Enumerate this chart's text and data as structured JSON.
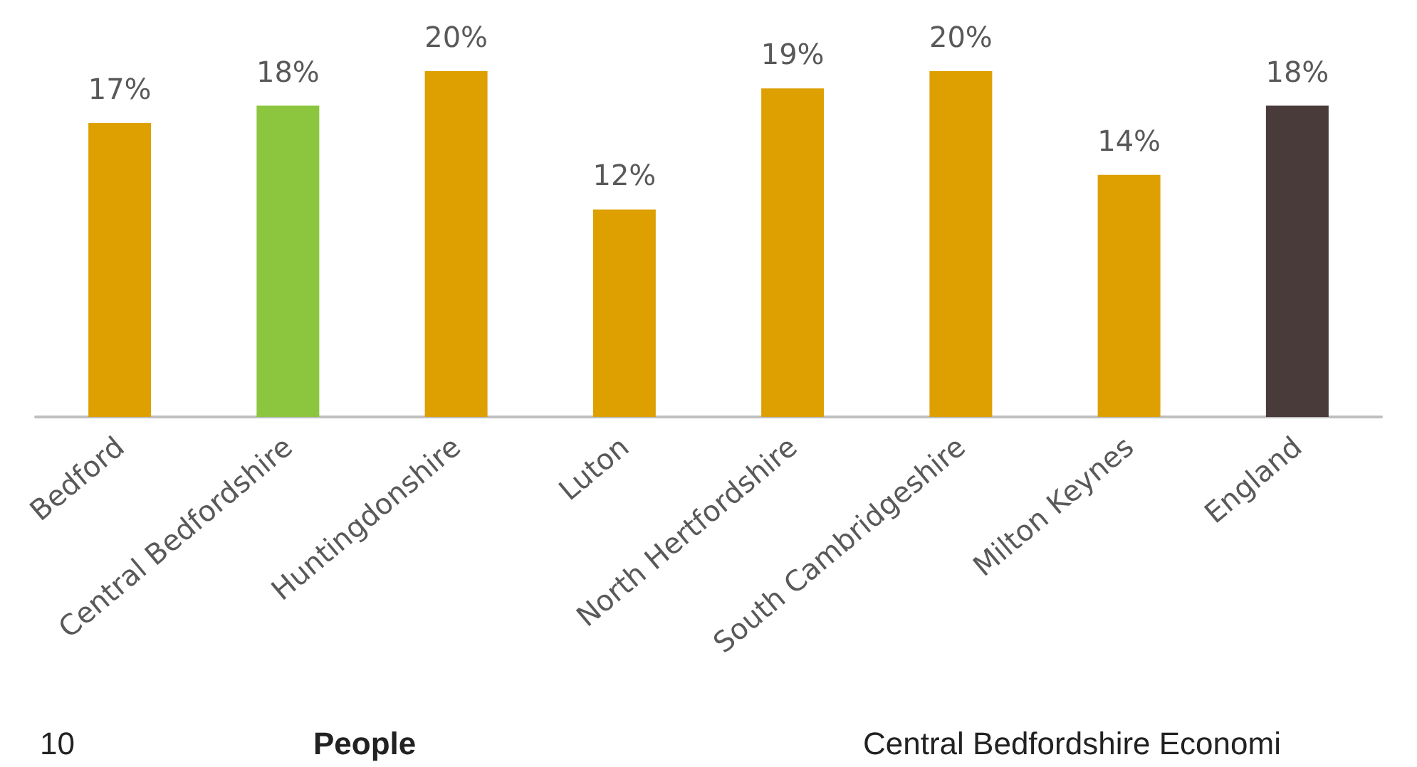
{
  "chart_data": {
    "type": "bar",
    "categories": [
      "Bedford",
      "Central Bedfordshire",
      "Huntingdonshire",
      "Luton",
      "North Hertfordshire",
      "South Cambridgeshire",
      "Milton Keynes",
      "England"
    ],
    "values": [
      17,
      18,
      20,
      12,
      19,
      20,
      14,
      18
    ],
    "value_labels": [
      "17%",
      "18%",
      "20%",
      "12%",
      "19%",
      "20%",
      "14%",
      "18%"
    ],
    "colors": [
      "#dda000",
      "#8cc63f",
      "#dda000",
      "#dda000",
      "#dda000",
      "#dda000",
      "#dda000",
      "#4a3b3b"
    ],
    "annotations": [
      "10",
      "People",
      "Central Bedfordshire Economi"
    ]
  }
}
